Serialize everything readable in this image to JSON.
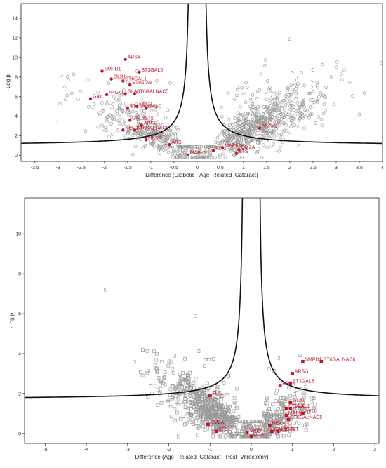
{
  "chart_data": [
    {
      "type": "scatter",
      "xlabel": "Difference (Diabetic - Age_Related_Cataract)",
      "ylabel": "-Log p",
      "xlim": [
        -3.8,
        4.0
      ],
      "ylim": [
        -0.6,
        15.5
      ],
      "xticks": [
        -3.5,
        -3,
        -2.5,
        -2,
        -1.5,
        -1,
        -0.5,
        0,
        0.5,
        1,
        1.5,
        2,
        2.5,
        3,
        3.5,
        4
      ],
      "xtick_labels": [
        "-3.5",
        "-3",
        "-2.5",
        "-2",
        "-1.5",
        "-1",
        "-0.5",
        "0",
        "0.5",
        "1",
        "1.5",
        "2",
        "2.5",
        "3",
        "3.5",
        "4"
      ],
      "yticks": [
        0,
        2,
        4,
        6,
        8,
        10,
        12,
        14
      ],
      "ytick_labels": [
        "0",
        "2",
        "4",
        "6",
        "8",
        "10",
        "12",
        "14"
      ],
      "marker": "circle",
      "highlighted": [
        {
          "label": "ARSK",
          "x": -1.55,
          "y": 9.8
        },
        {
          "label": "SMPD1",
          "x": -2.05,
          "y": 8.6
        },
        {
          "label": "ST3GAL5",
          "x": -1.25,
          "y": 8.5
        },
        {
          "label": "GLB1",
          "x": -1.85,
          "y": 7.8
        },
        {
          "label": "ST6GAL1",
          "x": -1.6,
          "y": 7.6
        },
        {
          "label": "ST8SIA5",
          "x": -1.45,
          "y": 7.2
        },
        {
          "label": "A4GALT",
          "x": -1.95,
          "y": 6.2
        },
        {
          "label": "GLA",
          "x": -1.55,
          "y": 6.3
        },
        {
          "label": "ST6GALNAC5",
          "x": -1.35,
          "y": 6.3
        },
        {
          "label": "Galc",
          "x": -2.3,
          "y": 5.8
        },
        {
          "label": "NEU2",
          "x": -1.3,
          "y": 5.0
        },
        {
          "label": "ST8SIA1",
          "x": -1.5,
          "y": 4.8
        },
        {
          "label": "GALC",
          "x": -1.1,
          "y": 4.8
        },
        {
          "label": "GAL3ST1",
          "x": -1.45,
          "y": 3.6
        },
        {
          "label": "ARSG",
          "x": -1.2,
          "y": 3.1
        },
        {
          "label": "NEU1",
          "x": -1.6,
          "y": 2.6
        },
        {
          "label": "ST6GALNAC6",
          "x": -1.35,
          "y": 2.6
        },
        {
          "label": "HEXA",
          "x": -1.1,
          "y": 1.6
        },
        {
          "label": "ASAH1",
          "x": 1.35,
          "y": 2.8
        },
        {
          "label": "ARSI",
          "x": -0.6,
          "y": 1.1
        },
        {
          "label": "MAPK1",
          "x": 0.55,
          "y": 0.8
        },
        {
          "label": "FLT1",
          "x": 0.35,
          "y": 0.5
        },
        {
          "label": "GM2A",
          "x": 0.9,
          "y": 0.6
        },
        {
          "label": "STS",
          "x": 0.85,
          "y": 0.2
        },
        {
          "label": "MAPK3",
          "x": -0.2,
          "y": 0.05
        }
      ]
    },
    {
      "type": "scatter",
      "xlabel": "Difference (Age_Related_Cataract - Post_Vitrectomy)",
      "ylabel": "-Log p",
      "xlim": [
        -5.5,
        3.1
      ],
      "ylim": [
        -0.5,
        11.8
      ],
      "xticks": [
        -5,
        -4,
        -3,
        -2,
        -1,
        0,
        1,
        2,
        3
      ],
      "xtick_labels": [
        "-5",
        "-4",
        "-3",
        "-2",
        "-1",
        "0",
        "1",
        "2",
        "3"
      ],
      "yticks": [
        0,
        2,
        4,
        6,
        8,
        10
      ],
      "ytick_labels": [
        "0",
        "2",
        "4",
        "6",
        "8",
        "10"
      ],
      "marker": "square",
      "highlighted": [
        {
          "label": "SMPD1",
          "x": 1.25,
          "y": 3.6
        },
        {
          "label": "ST6GALNAC6",
          "x": 1.7,
          "y": 3.6
        },
        {
          "label": "ARSG",
          "x": 1.0,
          "y": 3.0
        },
        {
          "label": "ST3GAL5",
          "x": 0.95,
          "y": 2.5
        },
        {
          "label": "ARSK",
          "x": 0.7,
          "y": 2.4
        },
        {
          "label": "FLT1",
          "x": -1.0,
          "y": 1.9
        },
        {
          "label": "GLB1",
          "x": 0.95,
          "y": 1.55
        },
        {
          "label": "ST6GAL1",
          "x": 0.85,
          "y": 1.25
        },
        {
          "label": "GALC",
          "x": 0.95,
          "y": 1.25
        },
        {
          "label": "NEU1",
          "x": 1.25,
          "y": 1.0
        },
        {
          "label": "MAPK3",
          "x": 0.85,
          "y": 0.9
        },
        {
          "label": "ST6GALNAC5",
          "x": 0.9,
          "y": 0.7
        },
        {
          "label": "HEXA",
          "x": 0.45,
          "y": 0.4
        },
        {
          "label": "GM2A",
          "x": -1.05,
          "y": 0.45
        },
        {
          "label": "STS",
          "x": -0.85,
          "y": 0.1
        },
        {
          "label": "GAL3ST1",
          "x": 0.5,
          "y": 0.1
        },
        {
          "label": "MAPK1",
          "x": -0.1,
          "y": 0.05
        },
        {
          "label": "GBA",
          "x": 0.0,
          "y": -0.15
        },
        {
          "label": "A4GALT",
          "x": 0.65,
          "y": 0.1
        }
      ]
    }
  ]
}
